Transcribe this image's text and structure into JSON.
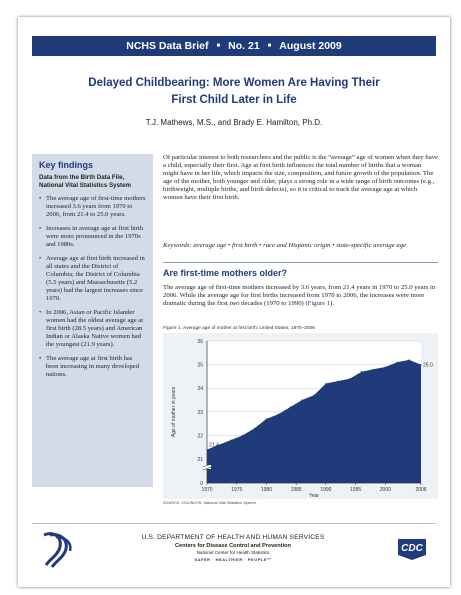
{
  "banner": {
    "series": "NCHS Data Brief",
    "number": "No. 21",
    "date": "August 2009",
    "sep": "■"
  },
  "title": {
    "line1": "Delayed Childbearing: More Women Are Having Their",
    "line2": "First Child Later in Life"
  },
  "authors": "T.J. Mathews, M.S., and Brady E. Hamilton, Ph.D.",
  "key_findings": {
    "heading": "Key findings",
    "source": "Data from the Birth Data File, National Vital Statistics System",
    "items": [
      "The average age of first-time mothers increased 3.6 years from 1970 to 2006, from 21.4 to 25.0 years.",
      "Increases in average age at first birth were more pronounced in the 1970s and 1980s.",
      "Average age at first birth increased in all states and the District of Columbia; the District of Columbia (5.5 years) and Massachusetts (5.2 years) had the largest increases since 1970.",
      "In 2006, Asian or Pacific Islander women had the oldest average age at first birth (28.5 years) and American Indian or Alaska Native women had the youngest (21.9 years).",
      "The average age at first birth has been increasing in many developed nations."
    ]
  },
  "intro": "Of particular interest to both researchers and the public is the “average” age of women when they have a child, especially their first. Age at first birth influences the total number of births that a woman might have in her life, which impacts the size, composition, and future growth of the population. The age of the mother, both younger and older, plays a strong role in a wide range of birth outcomes (e.g., birthweight, multiple births, and birth defects), so it is critical to track the average age at which women have their first birth.",
  "keywords": "Keywords: average age • first birth • race and Hispanic origin • state-specific average age",
  "section": {
    "heading": "Are first-time mothers older?",
    "body": "The average age of first-time mothers increased by 3.6 years, from 21.4 years in 1970 to 25.0 years in 2006. While the average age for first births increased from 1970 to 2006, the increases were more dramatic during the first two decades (1970 to 1990) (",
    "link": "Figure 1",
    "body_end": ")."
  },
  "figure": {
    "caption": "Figure 1. Average age of mother at first birth: United States, 1970–2006",
    "source": "SOURCE: CDC/NCHS, National Vital Statistics System."
  },
  "chart_data": {
    "type": "area",
    "x": [
      1970,
      1972,
      1974,
      1976,
      1978,
      1980,
      1982,
      1984,
      1986,
      1988,
      1990,
      1992,
      1994,
      1996,
      1998,
      2000,
      2002,
      2004,
      2006
    ],
    "values": [
      21.4,
      21.6,
      21.8,
      22.0,
      22.3,
      22.7,
      22.9,
      23.2,
      23.5,
      23.7,
      24.2,
      24.3,
      24.4,
      24.7,
      24.8,
      24.9,
      25.1,
      25.2,
      25.0
    ],
    "point_labels": {
      "start": "21.4",
      "end": "25.0"
    },
    "ylim": [
      0,
      26
    ],
    "yticks": [
      "0",
      "21",
      "22",
      "23",
      "24",
      "25",
      "26"
    ],
    "xticks": [
      "1970",
      "1975",
      "1980",
      "1985",
      "1990",
      "1995",
      "2000",
      "2006"
    ],
    "ylabel": "Age of mother in years",
    "xlabel": "Year",
    "axis_break": true,
    "grid": true,
    "fill_color": "#1f3b7a"
  },
  "footer": {
    "dept": "U.S. DEPARTMENT OF HEALTH AND HUMAN SERVICES",
    "cdc": "Centers for Disease Control and Prevention",
    "nchs": "National Center for Health Statistics",
    "tagline": "SAFER · HEALTHIER · PEOPLE™",
    "cdc_logo_text": "CDC"
  }
}
